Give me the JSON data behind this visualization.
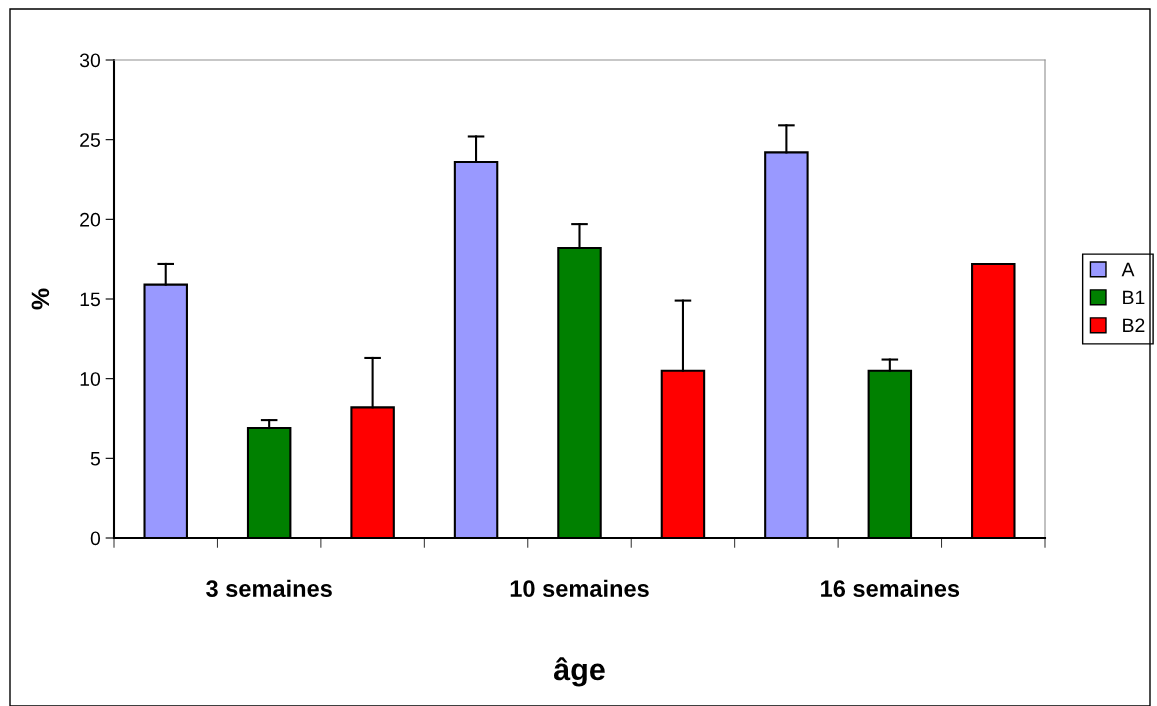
{
  "chart_data": {
    "type": "bar",
    "xlabel": "âge",
    "ylabel": "%",
    "categories": [
      null,
      "3 semaines",
      null,
      null,
      "10 semaines",
      null,
      null,
      "16 semaines",
      null
    ],
    "series": [
      {
        "name": "A",
        "color": "#9999ff",
        "values": [
          15.9,
          null,
          null,
          23.6,
          null,
          null,
          24.2,
          null,
          null
        ],
        "errors": [
          [
            15.9,
            17.2
          ],
          null,
          null,
          [
            23.6,
            25.2
          ],
          null,
          null,
          [
            24.2,
            25.9
          ],
          null,
          null
        ]
      },
      {
        "name": "B1",
        "color": "#008000",
        "values": [
          null,
          6.9,
          null,
          null,
          18.2,
          null,
          null,
          10.5,
          null
        ],
        "errors": [
          null,
          [
            6.9,
            7.4
          ],
          null,
          null,
          [
            18.2,
            19.7
          ],
          null,
          null,
          [
            10.5,
            11.2
          ],
          null
        ]
      },
      {
        "name": "B2",
        "color": "#ff0000",
        "values": [
          null,
          null,
          8.2,
          null,
          null,
          10.5,
          null,
          null,
          17.2
        ],
        "errors": [
          null,
          null,
          [
            8.2,
            11.3
          ],
          null,
          null,
          [
            10.5,
            14.9
          ],
          null,
          null,
          null
        ]
      }
    ],
    "ylim": [
      0,
      30
    ],
    "yticks": [
      0,
      5,
      10,
      15,
      20,
      25,
      30
    ],
    "grid": false,
    "legend": "right"
  }
}
